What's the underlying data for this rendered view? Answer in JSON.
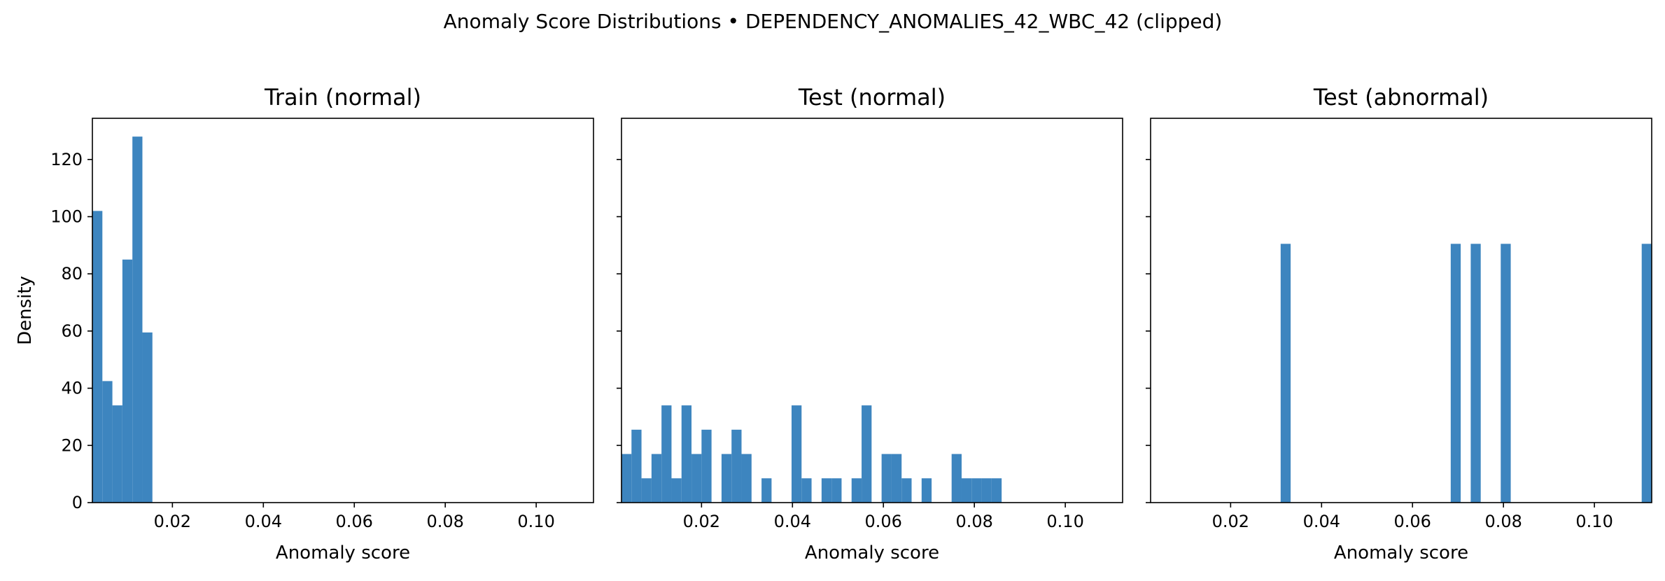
{
  "suptitle": "Anomaly Score Distributions • DEPENDENCY_ANOMALIES_42_WBC_42 (clipped)",
  "bar_color": "#3d85bf",
  "chart_data": [
    {
      "type": "bar",
      "title": "Train (normal)",
      "xlabel": "Anomaly score",
      "ylabel": "Density",
      "xlim": [
        0.0024,
        0.1126
      ],
      "ylim": [
        0,
        134.4
      ],
      "xticks": [
        0.02,
        0.04,
        0.06,
        0.08,
        0.1
      ],
      "xtick_labels": [
        "0.02",
        "0.04",
        "0.06",
        "0.08",
        "0.10"
      ],
      "yticks": [
        0,
        20,
        40,
        60,
        80,
        100,
        120
      ],
      "ytick_labels": [
        "0",
        "20",
        "40",
        "60",
        "80",
        "100",
        "120"
      ],
      "show_yticklabels": true,
      "bins": [
        {
          "x0": 0.0024,
          "x1": 0.0046,
          "value": 102
        },
        {
          "x0": 0.0046,
          "x1": 0.0068,
          "value": 42.5
        },
        {
          "x0": 0.0068,
          "x1": 0.009,
          "value": 34
        },
        {
          "x0": 0.009,
          "x1": 0.0112,
          "value": 85
        },
        {
          "x0": 0.0112,
          "x1": 0.0134,
          "value": 128
        },
        {
          "x0": 0.0134,
          "x1": 0.0156,
          "value": 59.5
        }
      ]
    },
    {
      "type": "bar",
      "title": "Test (normal)",
      "xlabel": "Anomaly score",
      "ylabel": "",
      "xlim": [
        0.0024,
        0.1126
      ],
      "ylim": [
        0,
        134.4
      ],
      "xticks": [
        0.02,
        0.04,
        0.06,
        0.08,
        0.1
      ],
      "xtick_labels": [
        "0.02",
        "0.04",
        "0.06",
        "0.08",
        "0.10"
      ],
      "yticks": [
        0,
        20,
        40,
        60,
        80,
        100,
        120
      ],
      "ytick_labels": [],
      "show_yticklabels": false,
      "bins": [
        {
          "x0": 0.0024,
          "x1": 0.0046,
          "value": 17
        },
        {
          "x0": 0.0046,
          "x1": 0.0068,
          "value": 25.5
        },
        {
          "x0": 0.0068,
          "x1": 0.009,
          "value": 8.5
        },
        {
          "x0": 0.009,
          "x1": 0.0112,
          "value": 17
        },
        {
          "x0": 0.0112,
          "x1": 0.0134,
          "value": 34
        },
        {
          "x0": 0.0134,
          "x1": 0.0156,
          "value": 8.5
        },
        {
          "x0": 0.0156,
          "x1": 0.0178,
          "value": 34
        },
        {
          "x0": 0.0178,
          "x1": 0.02,
          "value": 17
        },
        {
          "x0": 0.02,
          "x1": 0.0222,
          "value": 25.5
        },
        {
          "x0": 0.0244,
          "x1": 0.0266,
          "value": 17
        },
        {
          "x0": 0.0266,
          "x1": 0.0288,
          "value": 25.5
        },
        {
          "x0": 0.0288,
          "x1": 0.031,
          "value": 17
        },
        {
          "x0": 0.0332,
          "x1": 0.0354,
          "value": 8.5
        },
        {
          "x0": 0.0398,
          "x1": 0.042,
          "value": 34
        },
        {
          "x0": 0.042,
          "x1": 0.0442,
          "value": 8.5
        },
        {
          "x0": 0.0464,
          "x1": 0.0486,
          "value": 8.5
        },
        {
          "x0": 0.0486,
          "x1": 0.0508,
          "value": 8.5
        },
        {
          "x0": 0.053,
          "x1": 0.0552,
          "value": 8.5
        },
        {
          "x0": 0.0552,
          "x1": 0.0574,
          "value": 34
        },
        {
          "x0": 0.0596,
          "x1": 0.0618,
          "value": 17
        },
        {
          "x0": 0.0618,
          "x1": 0.064,
          "value": 17
        },
        {
          "x0": 0.064,
          "x1": 0.0662,
          "value": 8.5
        },
        {
          "x0": 0.0684,
          "x1": 0.0706,
          "value": 8.5
        },
        {
          "x0": 0.075,
          "x1": 0.0772,
          "value": 17
        },
        {
          "x0": 0.0772,
          "x1": 0.0794,
          "value": 8.5
        },
        {
          "x0": 0.0794,
          "x1": 0.0816,
          "value": 8.5
        },
        {
          "x0": 0.0816,
          "x1": 0.0838,
          "value": 8.5
        },
        {
          "x0": 0.0838,
          "x1": 0.086,
          "value": 8.5
        }
      ]
    },
    {
      "type": "bar",
      "title": "Test (abnormal)",
      "xlabel": "Anomaly score",
      "ylabel": "",
      "xlim": [
        0.0024,
        0.1126
      ],
      "ylim": [
        0,
        134.4
      ],
      "xticks": [
        0.02,
        0.04,
        0.06,
        0.08,
        0.1
      ],
      "xtick_labels": [
        "0.02",
        "0.04",
        "0.06",
        "0.08",
        "0.10"
      ],
      "yticks": [
        0,
        20,
        40,
        60,
        80,
        100,
        120
      ],
      "ytick_labels": [],
      "show_yticklabels": false,
      "bins": [
        {
          "x0": 0.031,
          "x1": 0.0332,
          "value": 90.5
        },
        {
          "x0": 0.0684,
          "x1": 0.0706,
          "value": 90.5
        },
        {
          "x0": 0.0728,
          "x1": 0.075,
          "value": 90.5
        },
        {
          "x0": 0.0794,
          "x1": 0.0816,
          "value": 90.5
        },
        {
          "x0": 0.1104,
          "x1": 0.1126,
          "value": 90.5
        }
      ]
    }
  ]
}
